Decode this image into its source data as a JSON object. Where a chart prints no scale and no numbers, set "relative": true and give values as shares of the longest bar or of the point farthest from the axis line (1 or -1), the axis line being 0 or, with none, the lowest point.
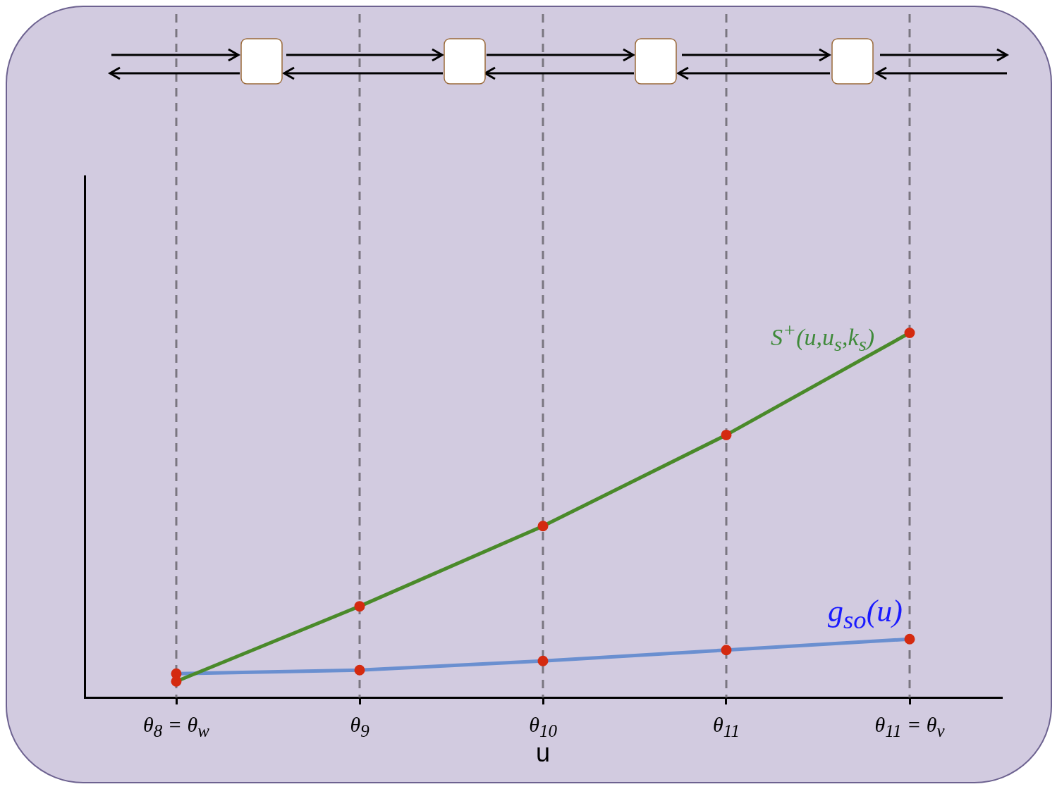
{
  "chart_data": {
    "type": "line",
    "relative": true,
    "xlabel": "u",
    "categories": [
      "θ$_{8}$ = θ$_{w}$",
      "θ$_{9}$",
      "θ$_{10}$",
      "θ$_{11}$",
      "θ$_{11}$ = θ$_{v}$"
    ],
    "series": [
      {
        "name": "S$^{+}$(u,u$_{s}$,k$_{s}$)",
        "color": "#4a8a2a",
        "values": [
          0.044,
          0.25,
          0.47,
          0.72,
          1
        ]
      },
      {
        "name": "g$_{so}$(u)",
        "color": "#6a8fd0",
        "values": [
          0.065,
          0.075,
          0.1,
          0.13,
          0.16
        ]
      }
    ],
    "marker": "circle",
    "grid": "x",
    "legend": false
  }
}
